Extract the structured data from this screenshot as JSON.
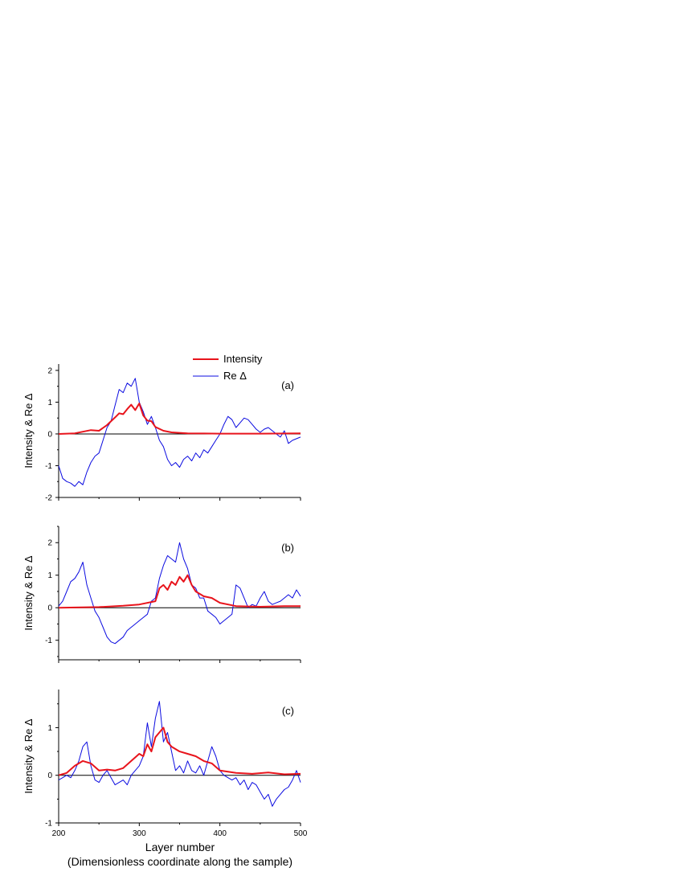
{
  "chart_data": [
    {
      "type": "line",
      "panel_label": "(a)",
      "ylabel": "Intensity & Re Δ",
      "xlim": [
        200,
        500
      ],
      "ylim": [
        -2,
        2.2
      ],
      "yticks": [
        -2,
        -1,
        0,
        1,
        2
      ],
      "legend": {
        "placement": "top",
        "entries": [
          "Intensity",
          "Re Δ"
        ]
      },
      "series": [
        {
          "name": "Intensity",
          "color": "#e8141c",
          "x": [
            200,
            220,
            240,
            250,
            260,
            270,
            275,
            280,
            285,
            290,
            295,
            300,
            305,
            310,
            315,
            320,
            330,
            340,
            360,
            400,
            450,
            500
          ],
          "y": [
            0,
            0.02,
            0.12,
            0.1,
            0.28,
            0.52,
            0.65,
            0.62,
            0.78,
            0.92,
            0.75,
            0.96,
            0.58,
            0.42,
            0.4,
            0.22,
            0.1,
            0.05,
            0.02,
            0.01,
            0.01,
            0.02
          ]
        },
        {
          "name": "Re Δ",
          "color": "#0b0be0",
          "x": [
            200,
            205,
            210,
            215,
            220,
            225,
            230,
            235,
            240,
            245,
            250,
            255,
            260,
            265,
            270,
            275,
            280,
            285,
            290,
            295,
            300,
            305,
            310,
            315,
            320,
            325,
            330,
            335,
            340,
            345,
            350,
            355,
            360,
            365,
            370,
            375,
            380,
            385,
            390,
            395,
            400,
            405,
            410,
            415,
            420,
            425,
            430,
            435,
            440,
            445,
            450,
            455,
            460,
            465,
            470,
            475,
            480,
            485,
            490,
            495,
            500
          ],
          "y": [
            -1.0,
            -1.4,
            -1.5,
            -1.55,
            -1.65,
            -1.5,
            -1.6,
            -1.2,
            -0.9,
            -0.7,
            -0.6,
            -0.2,
            0.2,
            0.4,
            0.9,
            1.4,
            1.3,
            1.6,
            1.5,
            1.75,
            1.0,
            0.7,
            0.3,
            0.55,
            0.2,
            -0.2,
            -0.4,
            -0.8,
            -1.0,
            -0.9,
            -1.05,
            -0.8,
            -0.7,
            -0.85,
            -0.6,
            -0.75,
            -0.5,
            -0.6,
            -0.4,
            -0.2,
            0.0,
            0.3,
            0.55,
            0.45,
            0.2,
            0.35,
            0.5,
            0.45,
            0.3,
            0.15,
            0.05,
            0.15,
            0.2,
            0.1,
            0.0,
            -0.1,
            0.1,
            -0.3,
            -0.2,
            -0.15,
            -0.1
          ]
        }
      ]
    },
    {
      "type": "line",
      "panel_label": "(b)",
      "ylabel": "Intensity & Re Δ",
      "xlim": [
        200,
        500
      ],
      "ylim": [
        -1.6,
        2.5
      ],
      "yticks": [
        -1,
        0,
        1,
        2
      ],
      "series": [
        {
          "name": "Intensity",
          "color": "#e8141c",
          "x": [
            200,
            250,
            280,
            300,
            320,
            325,
            330,
            335,
            340,
            345,
            350,
            355,
            360,
            365,
            370,
            380,
            390,
            400,
            420,
            450,
            480,
            500
          ],
          "y": [
            0,
            0.02,
            0.06,
            0.1,
            0.2,
            0.6,
            0.7,
            0.55,
            0.8,
            0.7,
            0.95,
            0.8,
            1.0,
            0.7,
            0.5,
            0.35,
            0.3,
            0.15,
            0.05,
            0.03,
            0.05,
            0.05
          ]
        },
        {
          "name": "Re Δ",
          "color": "#0b0be0",
          "x": [
            200,
            205,
            210,
            215,
            220,
            225,
            230,
            235,
            240,
            245,
            250,
            255,
            260,
            265,
            270,
            275,
            280,
            285,
            290,
            295,
            300,
            305,
            310,
            315,
            320,
            325,
            330,
            335,
            340,
            345,
            350,
            355,
            360,
            365,
            370,
            375,
            380,
            385,
            390,
            395,
            400,
            405,
            410,
            415,
            420,
            425,
            430,
            435,
            440,
            445,
            450,
            455,
            460,
            465,
            470,
            475,
            480,
            485,
            490,
            495,
            500
          ],
          "y": [
            0.05,
            0.2,
            0.5,
            0.8,
            0.9,
            1.1,
            1.4,
            0.7,
            0.3,
            -0.1,
            -0.3,
            -0.6,
            -0.9,
            -1.05,
            -1.1,
            -1.0,
            -0.9,
            -0.7,
            -0.6,
            -0.5,
            -0.4,
            -0.3,
            -0.2,
            0.2,
            0.3,
            0.9,
            1.3,
            1.6,
            1.5,
            1.4,
            2.0,
            1.5,
            1.2,
            0.7,
            0.6,
            0.3,
            0.3,
            -0.1,
            -0.2,
            -0.3,
            -0.5,
            -0.4,
            -0.3,
            -0.2,
            0.7,
            0.6,
            0.3,
            0.0,
            0.1,
            0.05,
            0.3,
            0.5,
            0.2,
            0.1,
            0.15,
            0.2,
            0.3,
            0.4,
            0.3,
            0.55,
            0.35
          ]
        }
      ]
    },
    {
      "type": "line",
      "panel_label": "(c)",
      "ylabel": "Intensity & Re Δ",
      "xlabel": "Layer number",
      "xlabel_sub": "(Dimensionless coordinate along the sample)",
      "xlim": [
        200,
        500
      ],
      "xticks": [
        200,
        300,
        400,
        500
      ],
      "ylim": [
        -1,
        1.8
      ],
      "yticks": [
        -1,
        0,
        1
      ],
      "series": [
        {
          "name": "Intensity",
          "color": "#e8141c",
          "x": [
            200,
            210,
            220,
            230,
            240,
            250,
            260,
            270,
            280,
            290,
            300,
            305,
            310,
            315,
            320,
            325,
            330,
            335,
            340,
            345,
            350,
            360,
            370,
            380,
            390,
            400,
            420,
            440,
            460,
            480,
            500
          ],
          "y": [
            0,
            0.05,
            0.2,
            0.3,
            0.25,
            0.1,
            0.12,
            0.1,
            0.15,
            0.3,
            0.45,
            0.4,
            0.65,
            0.5,
            0.8,
            0.9,
            1.0,
            0.7,
            0.6,
            0.55,
            0.5,
            0.45,
            0.4,
            0.3,
            0.25,
            0.1,
            0.05,
            0.03,
            0.06,
            0.02,
            0.03
          ]
        },
        {
          "name": "Re Δ",
          "color": "#0b0be0",
          "x": [
            200,
            205,
            210,
            215,
            220,
            225,
            230,
            235,
            240,
            245,
            250,
            255,
            260,
            265,
            270,
            275,
            280,
            285,
            290,
            295,
            300,
            305,
            310,
            315,
            320,
            325,
            330,
            335,
            340,
            345,
            350,
            355,
            360,
            365,
            370,
            375,
            380,
            385,
            390,
            395,
            400,
            405,
            410,
            415,
            420,
            425,
            430,
            435,
            440,
            445,
            450,
            455,
            460,
            465,
            470,
            475,
            480,
            485,
            490,
            495,
            500
          ],
          "y": [
            -0.1,
            -0.05,
            0.0,
            -0.05,
            0.1,
            0.3,
            0.6,
            0.7,
            0.2,
            -0.1,
            -0.15,
            0.0,
            0.1,
            -0.05,
            -0.2,
            -0.15,
            -0.1,
            -0.2,
            0.0,
            0.1,
            0.2,
            0.4,
            1.1,
            0.6,
            1.2,
            1.55,
            0.7,
            0.9,
            0.5,
            0.1,
            0.2,
            0.05,
            0.3,
            0.1,
            0.05,
            0.2,
            0.0,
            0.3,
            0.6,
            0.4,
            0.1,
            0.0,
            -0.05,
            -0.1,
            -0.05,
            -0.2,
            -0.1,
            -0.3,
            -0.15,
            -0.2,
            -0.35,
            -0.5,
            -0.4,
            -0.65,
            -0.5,
            -0.4,
            -0.3,
            -0.25,
            -0.1,
            0.1,
            -0.15
          ]
        }
      ]
    }
  ]
}
